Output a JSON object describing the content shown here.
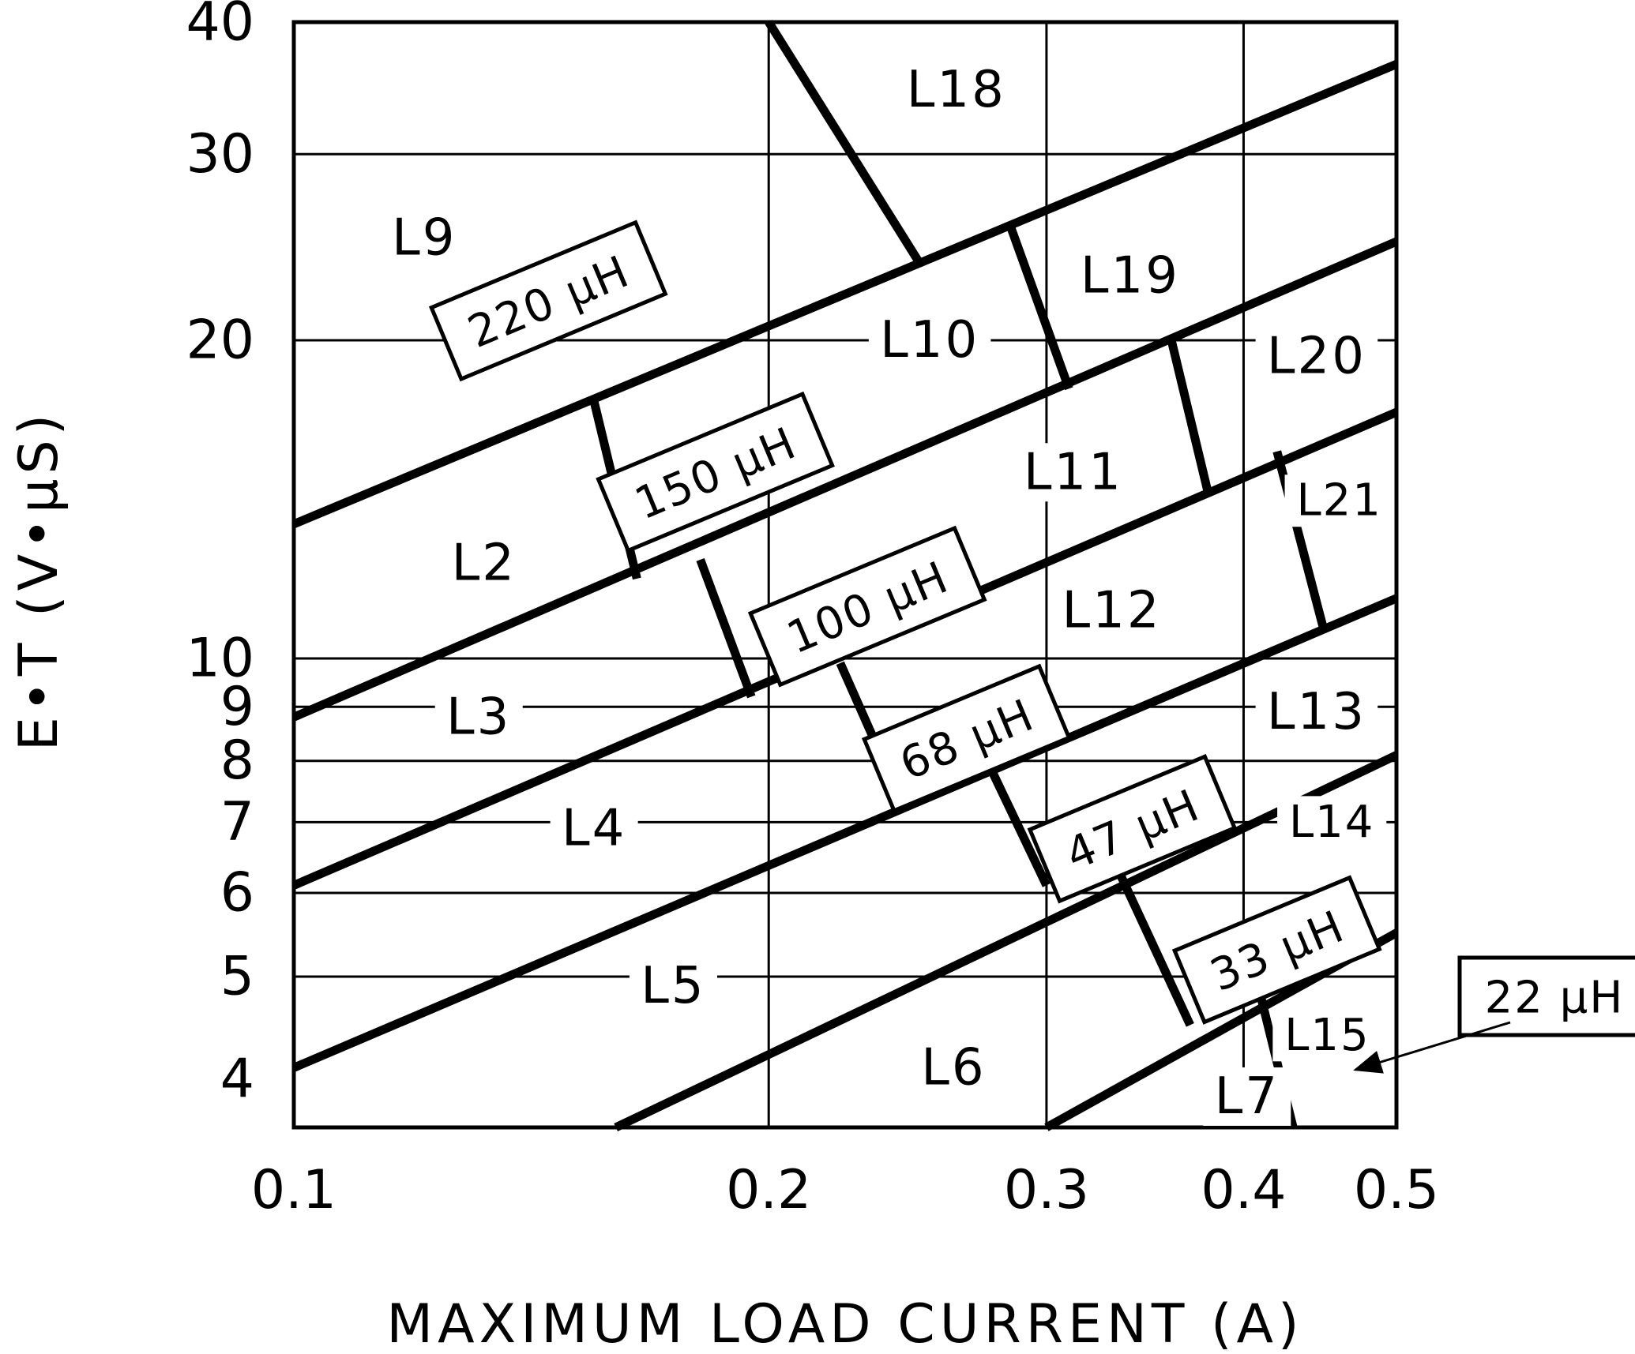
{
  "chart_data": {
    "type": "line",
    "title": "",
    "xlabel": "MAXIMUM LOAD CURRENT (A)",
    "ylabel": "E•T (V•μS)",
    "x_scale": "log",
    "y_scale": "log",
    "xlim": [
      0.1,
      0.5
    ],
    "ylim": [
      3.6,
      40
    ],
    "grid": true,
    "x_ticks": [
      {
        "value": 0.1,
        "label": "0.1"
      },
      {
        "value": 0.2,
        "label": "0.2"
      },
      {
        "value": 0.3,
        "label": "0.3"
      },
      {
        "value": 0.4,
        "label": "0.4"
      },
      {
        "value": 0.5,
        "label": "0.5"
      }
    ],
    "y_ticks": [
      {
        "value": 4,
        "label": "4"
      },
      {
        "value": 5,
        "label": "5"
      },
      {
        "value": 6,
        "label": "6"
      },
      {
        "value": 7,
        "label": "7"
      },
      {
        "value": 8,
        "label": "8"
      },
      {
        "value": 9,
        "label": "9"
      },
      {
        "value": 10,
        "label": "10"
      },
      {
        "value": 20,
        "label": "20"
      },
      {
        "value": 30,
        "label": "30"
      },
      {
        "value": 40,
        "label": "40"
      }
    ],
    "x_grid": [
      0.2,
      0.3,
      0.4
    ],
    "y_grid": [
      5,
      6,
      7,
      8,
      9,
      10,
      20,
      30
    ],
    "series": [
      {
        "name": "220 μH",
        "x": [
          0.1,
          0.5
        ],
        "y": [
          13.4,
          36.5
        ]
      },
      {
        "name": "150 μH",
        "x": [
          0.1,
          0.5
        ],
        "y": [
          8.8,
          24.8
        ]
      },
      {
        "name": "100 μH",
        "x": [
          0.1,
          0.5
        ],
        "y": [
          6.1,
          17.1
        ]
      },
      {
        "name": "68 μH",
        "x": [
          0.1,
          0.5
        ],
        "y": [
          4.1,
          11.4
        ]
      },
      {
        "name": "47 μH",
        "x": [
          0.16,
          0.5
        ],
        "y": [
          3.6,
          8.1
        ]
      },
      {
        "name": "33 μH",
        "x": [
          0.3,
          0.5
        ],
        "y": [
          3.6,
          5.5
        ]
      }
    ],
    "boundaries": [
      {
        "x": [
          0.2,
          0.25
        ],
        "y": [
          40,
          23.5
        ]
      },
      {
        "x": [
          0.285,
          0.31
        ],
        "y": [
          25.5,
          18
        ]
      },
      {
        "x": [
          0.155,
          0.165
        ],
        "y": [
          17.5,
          11.9
        ]
      },
      {
        "x": [
          0.36,
          0.38
        ],
        "y": [
          20,
          14.3
        ]
      },
      {
        "x": [
          0.181,
          0.195
        ],
        "y": [
          12.4,
          9.2
        ]
      },
      {
        "x": [
          0.42,
          0.45
        ],
        "y": [
          15.7,
          10.6
        ]
      },
      {
        "x": [
          0.222,
          0.242
        ],
        "y": [
          9.9,
          7.4
        ]
      },
      {
        "x": [
          0.274,
          0.3
        ],
        "y": [
          8.1,
          6.1
        ]
      },
      {
        "x": [
          0.33,
          0.37
        ],
        "y": [
          6.5,
          4.5
        ]
      },
      {
        "x": [
          0.41,
          0.43
        ],
        "y": [
          4.8,
          3.6
        ]
      }
    ],
    "regions": [
      {
        "label": "L18",
        "x": 0.263,
        "y": 34.5
      },
      {
        "label": "L9",
        "x": 0.121,
        "y": 25
      },
      {
        "label": "L19",
        "x": 0.339,
        "y": 23
      },
      {
        "label": "L10",
        "x": 0.253,
        "y": 20
      },
      {
        "label": "L20",
        "x": 0.445,
        "y": 19.3
      },
      {
        "label": "L11",
        "x": 0.312,
        "y": 15
      },
      {
        "label": "L21",
        "x": 0.46,
        "y": 14.1
      },
      {
        "label": "L2",
        "x": 0.132,
        "y": 12.3
      },
      {
        "label": "L12",
        "x": 0.33,
        "y": 11.1
      },
      {
        "label": "L3",
        "x": 0.131,
        "y": 8.8
      },
      {
        "label": "L13",
        "x": 0.445,
        "y": 8.9
      },
      {
        "label": "L4",
        "x": 0.155,
        "y": 6.9
      },
      {
        "label": "L14",
        "x": 0.455,
        "y": 7
      },
      {
        "label": "L5",
        "x": 0.174,
        "y": 4.9
      },
      {
        "label": "L6",
        "x": 0.262,
        "y": 4.1
      },
      {
        "label": "L15",
        "x": 0.452,
        "y": 4.4
      },
      {
        "label": "L7",
        "x": 0.402,
        "y": 3.85
      }
    ],
    "annotations": [
      {
        "text": "220 μH",
        "x": 0.145,
        "y": 21.8
      },
      {
        "text": "150 μH",
        "x": 0.185,
        "y": 15
      },
      {
        "text": "100 μH",
        "x": 0.231,
        "y": 11.2
      },
      {
        "text": "68 μH",
        "x": 0.267,
        "y": 8.4
      },
      {
        "text": "47 μH",
        "x": 0.34,
        "y": 6.9
      },
      {
        "text": "33 μH",
        "x": 0.42,
        "y": 5.3
      },
      {
        "text": "22 μH",
        "x": 0.63,
        "y": 4.95
      }
    ]
  }
}
